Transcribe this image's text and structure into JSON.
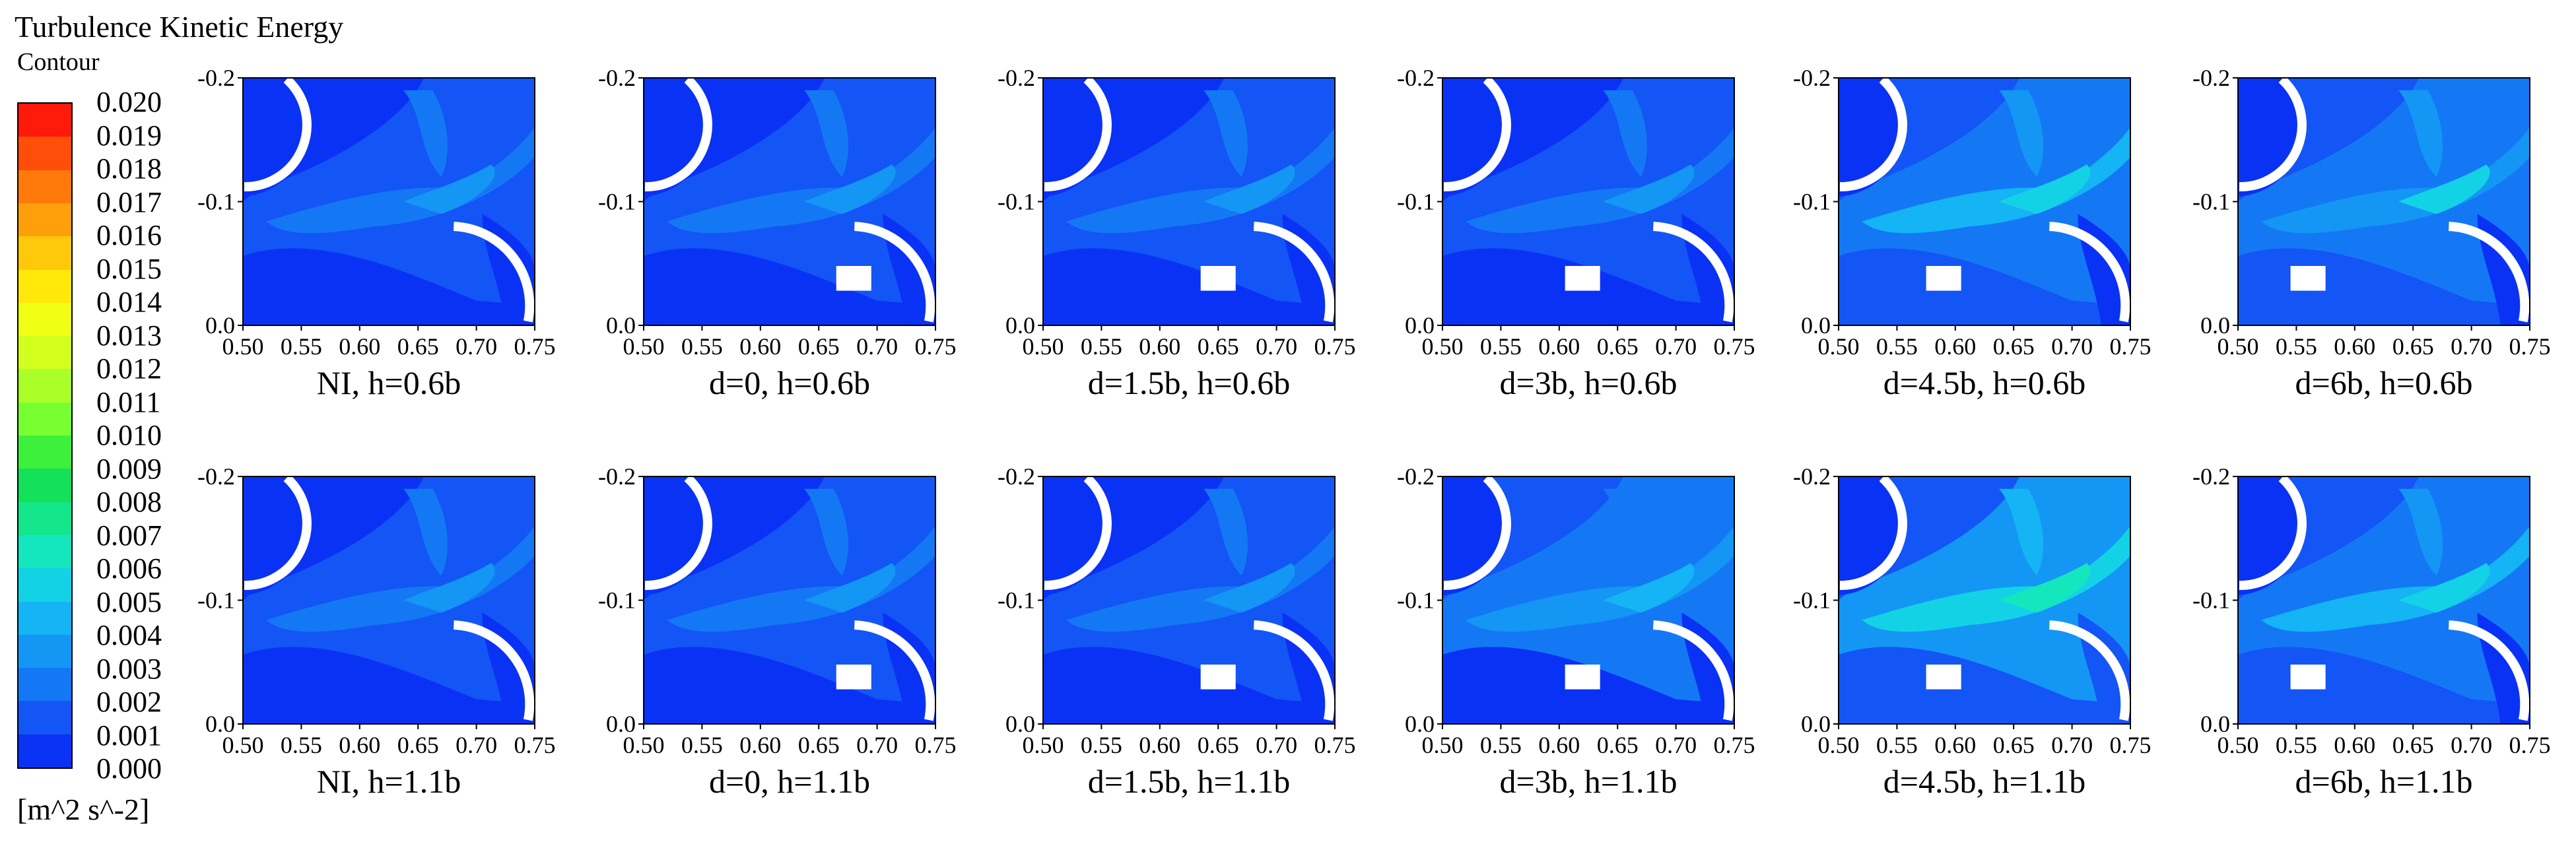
{
  "legend": {
    "title": "Turbulence Kinetic Energy",
    "subtitle": "Contour",
    "units": "[m^2 s^-2]",
    "ticks": [
      "0.020",
      "0.019",
      "0.018",
      "0.017",
      "0.016",
      "0.015",
      "0.014",
      "0.013",
      "0.012",
      "0.011",
      "0.010",
      "0.009",
      "0.008",
      "0.007",
      "0.006",
      "0.005",
      "0.004",
      "0.003",
      "0.002",
      "0.001",
      "0.000"
    ],
    "colors": [
      "#ff1a0a",
      "#ff4d0a",
      "#ff7a0a",
      "#ffa00a",
      "#ffc80a",
      "#ffe80a",
      "#f0ff14",
      "#d2ff1e",
      "#aaff28",
      "#78ff32",
      "#3cf03c",
      "#14e05a",
      "#14e68c",
      "#14e6be",
      "#14d2e6",
      "#14b4f5",
      "#1496f5",
      "#1478f5",
      "#1455f5",
      "#0a32f5"
    ]
  },
  "chart_data": {
    "type": "heatmap",
    "xlim": [
      0.5,
      0.75
    ],
    "ylim": [
      0.0,
      -0.2
    ],
    "x_ticks": [
      "0.50",
      "0.55",
      "0.60",
      "0.65",
      "0.70",
      "0.75"
    ],
    "y_ticks": [
      "-0.2",
      "-0.1",
      "0.0"
    ],
    "panels": [
      {
        "caption": "NI, h=0.6b",
        "block_x": null,
        "level": 0.0015
      },
      {
        "caption": "d=0, h=0.6b",
        "block_x": 0.68,
        "level": 0.0015
      },
      {
        "caption": "d=1.5b, h=0.6b",
        "block_x": 0.65,
        "level": 0.0017
      },
      {
        "caption": "d=3b, h=0.6b",
        "block_x": 0.62,
        "level": 0.0018
      },
      {
        "caption": "d=4.5b, h=0.6b",
        "block_x": 0.59,
        "level": 0.0026
      },
      {
        "caption": "d=6b, h=0.6b",
        "block_x": 0.56,
        "level": 0.0024
      },
      {
        "caption": "NI, h=1.1b",
        "block_x": null,
        "level": 0.0016
      },
      {
        "caption": "d=0, h=1.1b",
        "block_x": 0.68,
        "level": 0.0017
      },
      {
        "caption": "d=1.5b, h=1.1b",
        "block_x": 0.65,
        "level": 0.0019
      },
      {
        "caption": "d=3b, h=1.1b",
        "block_x": 0.62,
        "level": 0.0021
      },
      {
        "caption": "d=4.5b, h=1.1b",
        "block_x": 0.59,
        "level": 0.0033
      },
      {
        "caption": "d=6b, h=1.1b",
        "block_x": 0.56,
        "level": 0.0027
      }
    ]
  }
}
